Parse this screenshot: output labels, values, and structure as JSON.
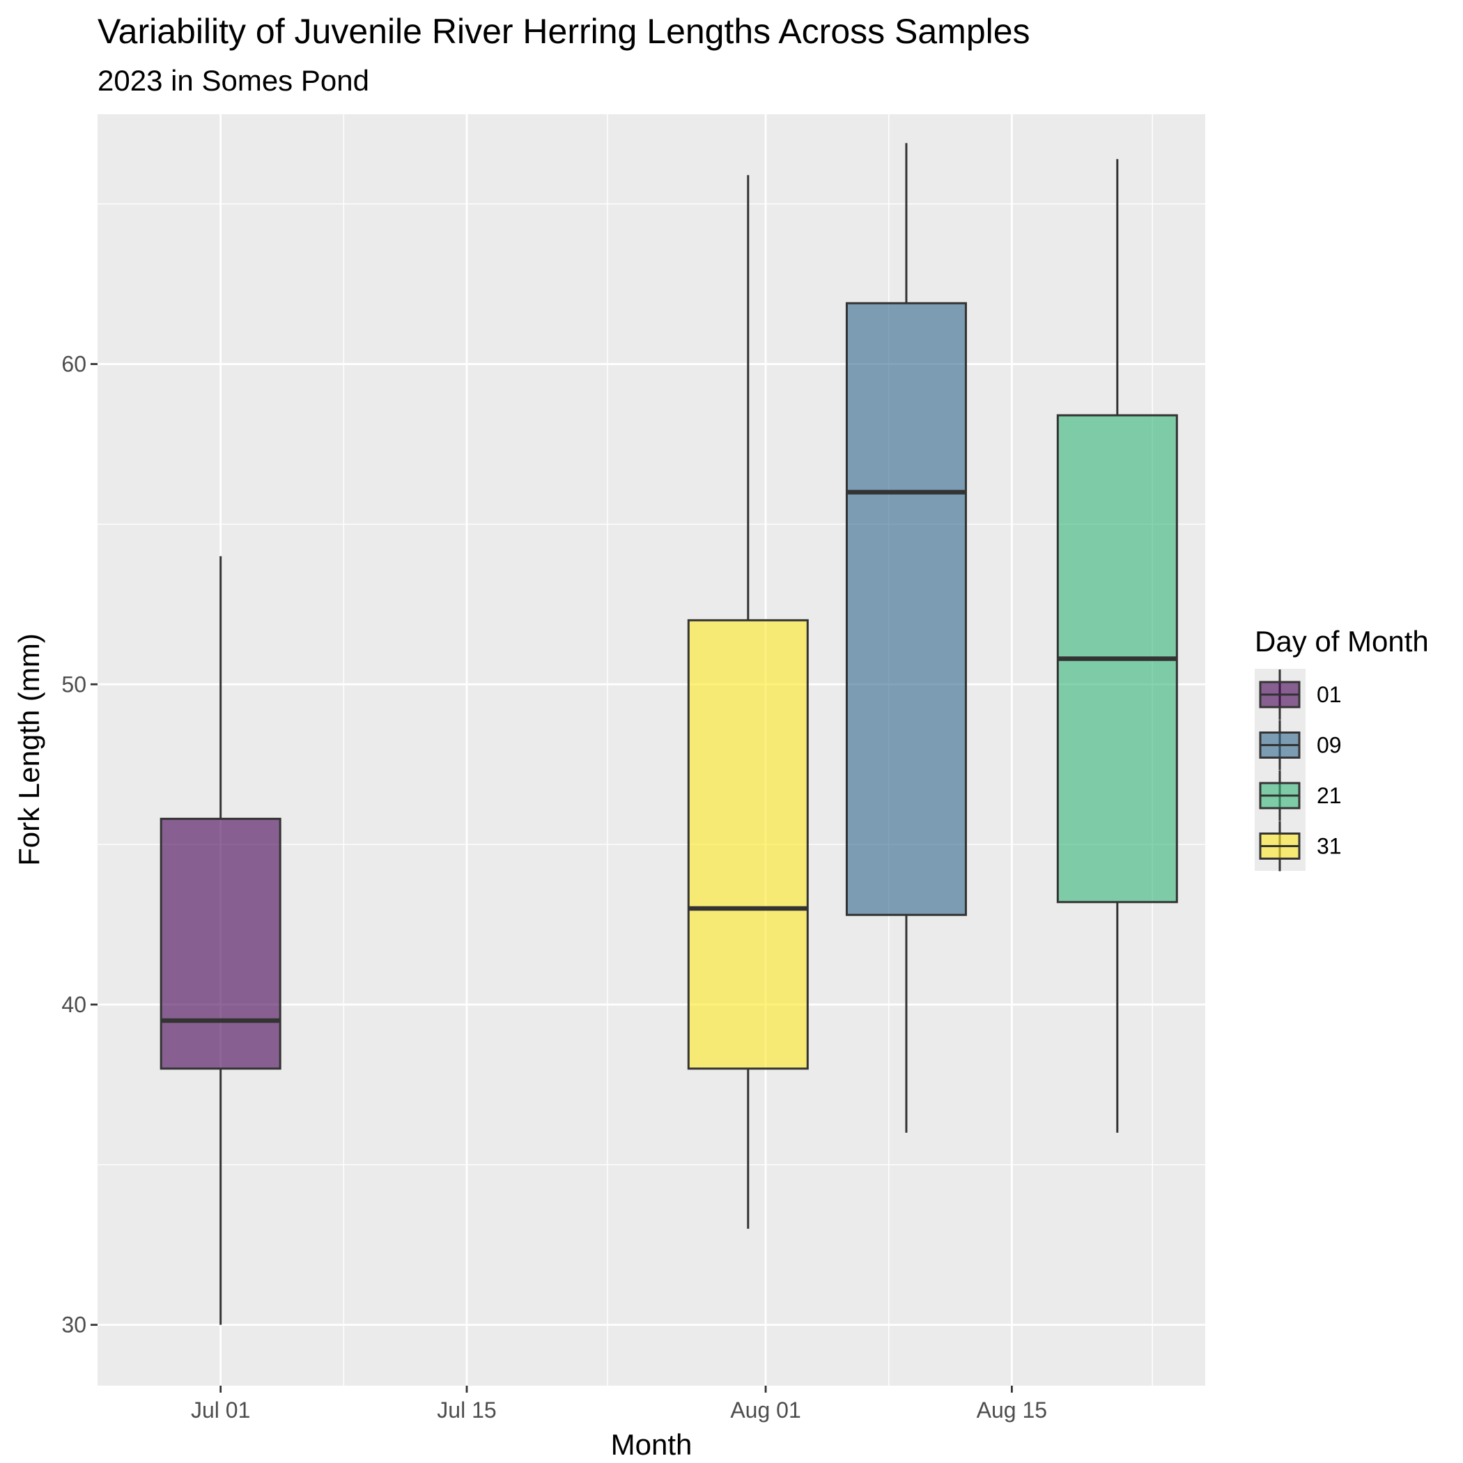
{
  "chart_data": {
    "type": "boxplot",
    "title": "Variability of Juvenile River Herring Lengths Across Samples",
    "subtitle": "2023 in Somes Pond",
    "xlabel": "Month",
    "ylabel": "Fork Length (mm)",
    "x_axis": {
      "type": "date",
      "range": [
        "2023-06-24",
        "2023-08-26"
      ],
      "ticks": [
        {
          "date": "2023-07-01",
          "label": "Jul 01"
        },
        {
          "date": "2023-07-15",
          "label": "Jul 15"
        },
        {
          "date": "2023-08-01",
          "label": "Aug 01"
        },
        {
          "date": "2023-08-15",
          "label": "Aug 15"
        }
      ],
      "minor_ticks": [
        "2023-07-08",
        "2023-07-23",
        "2023-08-08",
        "2023-08-23"
      ]
    },
    "y_axis": {
      "range": [
        28.1,
        67.8
      ],
      "ticks": [
        30,
        40,
        50,
        60
      ],
      "minor_ticks": [
        35,
        45,
        55,
        65
      ]
    },
    "grid": true,
    "legend": {
      "title": "Day of Month",
      "position": "right",
      "items": [
        {
          "label": "01",
          "color": "#440154"
        },
        {
          "label": "09",
          "color": "#31688E"
        },
        {
          "label": "21",
          "color": "#35B779"
        },
        {
          "label": "31",
          "color": "#FDE725"
        }
      ]
    },
    "boxes": [
      {
        "date": "2023-07-01",
        "group": "01",
        "color": "#440154",
        "min": 30,
        "q1": 38,
        "median": 39.5,
        "q3": 45.8,
        "max": 54
      },
      {
        "date": "2023-07-31",
        "group": "31",
        "color": "#FDE725",
        "min": 33,
        "q1": 38,
        "median": 43,
        "q3": 52,
        "max": 65.9
      },
      {
        "date": "2023-08-09",
        "group": "09",
        "color": "#31688E",
        "min": 36,
        "q1": 42.8,
        "median": 56,
        "q3": 61.9,
        "max": 66.9
      },
      {
        "date": "2023-08-21",
        "group": "21",
        "color": "#35B779",
        "min": 36,
        "q1": 43.2,
        "median": 50.8,
        "q3": 58.4,
        "max": 66.4
      }
    ],
    "box_fill_alpha": 0.6
  }
}
